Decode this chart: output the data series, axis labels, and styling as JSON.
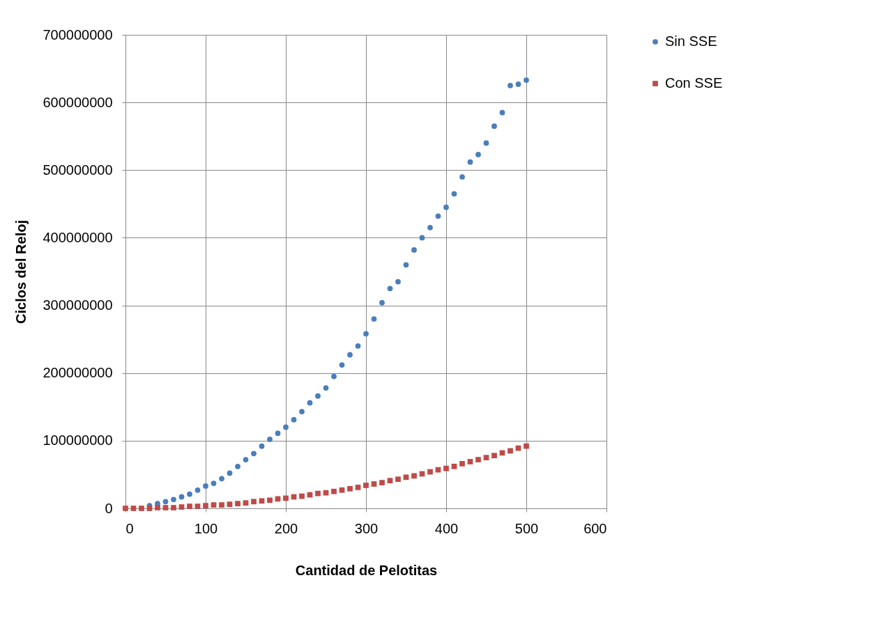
{
  "chart_data": {
    "type": "scatter",
    "xlabel": "Cantidad de Pelotitas",
    "ylabel": "Ciclos del Reloj",
    "x": [
      0,
      10,
      20,
      30,
      40,
      50,
      60,
      70,
      80,
      90,
      100,
      110,
      120,
      130,
      140,
      150,
      160,
      170,
      180,
      190,
      200,
      210,
      220,
      230,
      240,
      250,
      260,
      270,
      280,
      290,
      300,
      310,
      320,
      330,
      340,
      350,
      360,
      370,
      380,
      390,
      400,
      410,
      420,
      430,
      440,
      450,
      460,
      470,
      480,
      490,
      500
    ],
    "series": [
      {
        "name": "Sin SSE",
        "color": "#4a7ebb",
        "marker": "circle",
        "values": [
          null,
          null,
          null,
          4000000,
          7000000,
          10000000,
          13000000,
          17000000,
          21000000,
          27000000,
          33000000,
          37000000,
          44000000,
          52000000,
          62000000,
          72000000,
          81000000,
          92000000,
          102000000,
          111000000,
          120000000,
          131000000,
          143000000,
          156000000,
          166000000,
          178000000,
          195000000,
          212000000,
          227000000,
          240000000,
          258000000,
          280000000,
          304000000,
          325000000,
          335000000,
          360000000,
          382000000,
          400000000,
          415000000,
          432000000,
          445000000,
          465000000,
          490000000,
          512000000,
          523000000,
          540000000,
          565000000,
          585000000,
          625000000,
          627000000,
          633000000
        ]
      },
      {
        "name": "Con SSE",
        "color": "#be4b48",
        "marker": "square",
        "values": [
          0,
          0,
          0,
          0,
          1000000,
          1000000,
          1000000,
          2000000,
          3000000,
          3000000,
          4000000,
          5000000,
          5000000,
          6000000,
          7000000,
          8000000,
          10000000,
          11000000,
          12000000,
          14000000,
          15000000,
          17000000,
          18000000,
          20000000,
          22000000,
          23000000,
          25000000,
          27000000,
          29000000,
          31000000,
          34000000,
          36000000,
          38000000,
          41000000,
          43000000,
          46000000,
          48000000,
          51000000,
          54000000,
          57000000,
          59000000,
          62000000,
          66000000,
          69000000,
          72000000,
          75000000,
          78000000,
          82000000,
          85000000,
          89000000,
          92000000
        ]
      }
    ],
    "xlim": [
      0,
      600
    ],
    "xticks": [
      0,
      100,
      200,
      300,
      400,
      500,
      600
    ],
    "ylim": [
      0,
      700000000
    ],
    "yticks": [
      0,
      100000000,
      200000000,
      300000000,
      400000000,
      500000000,
      600000000,
      700000000
    ],
    "grid": true,
    "legend": "right"
  }
}
